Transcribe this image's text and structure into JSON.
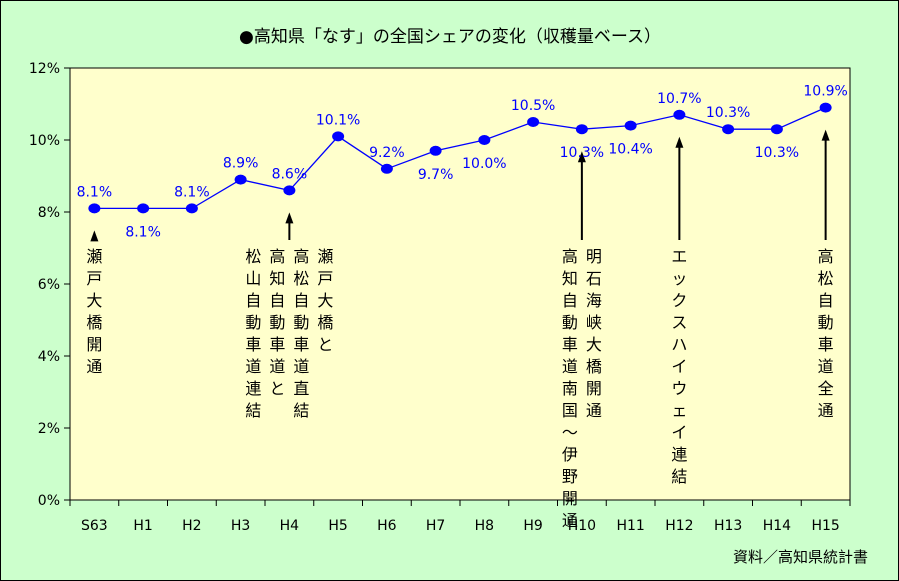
{
  "chart_data": {
    "type": "line",
    "title": "●高知県「なす」の全国シェアの変化（収穫量ベース）",
    "source": "資料／高知県統計書",
    "categories": [
      "S63",
      "H1",
      "H2",
      "H3",
      "H4",
      "H5",
      "H6",
      "H7",
      "H8",
      "H9",
      "H10",
      "H11",
      "H12",
      "H13",
      "H14",
      "H15"
    ],
    "series": [
      {
        "values": [
          8.1,
          8.1,
          8.1,
          8.9,
          8.6,
          10.1,
          9.2,
          9.7,
          10.0,
          10.5,
          10.3,
          10.4,
          10.7,
          10.3,
          10.3,
          10.9
        ],
        "labels": [
          "8.1%",
          "8.1%",
          "8.1%",
          "8.9%",
          "8.6%",
          "10.1%",
          "9.2%",
          "9.7%",
          "10.0%",
          "10.5%",
          "10.3%",
          "10.4%",
          "10.7%",
          "10.3%",
          "10.3%",
          "10.9%"
        ],
        "label_pos": [
          "above",
          "below",
          "above",
          "above",
          "above",
          "above",
          "above",
          "below",
          "below",
          "above",
          "below",
          "below",
          "above",
          "above",
          "below",
          "above"
        ]
      }
    ],
    "y_ticks": [
      "0%",
      "2%",
      "4%",
      "6%",
      "8%",
      "10%",
      "12%"
    ],
    "ylim": [
      0,
      12
    ],
    "grid": false,
    "colors": {
      "line": "#0000ff",
      "marker": "#0000ff",
      "plot_bg": "#ffffcc",
      "page_bg": "#ccffcc"
    },
    "annotations": [
      {
        "category": "S63",
        "columns": [
          "瀬戸大橋開通"
        ]
      },
      {
        "category": "H4",
        "columns": [
          "瀬戸大橋と",
          "高松自動車道直結",
          "高知自動車道と",
          "松山自動車道連結"
        ]
      },
      {
        "category": "H10",
        "columns": [
          "明石海峡大橋開通",
          "高知自動車道南国～伊野開通"
        ]
      },
      {
        "category": "H12",
        "columns": [
          "エックスハイウェイ連結"
        ]
      },
      {
        "category": "H15",
        "columns": [
          "高松自動車道全通"
        ]
      }
    ]
  }
}
